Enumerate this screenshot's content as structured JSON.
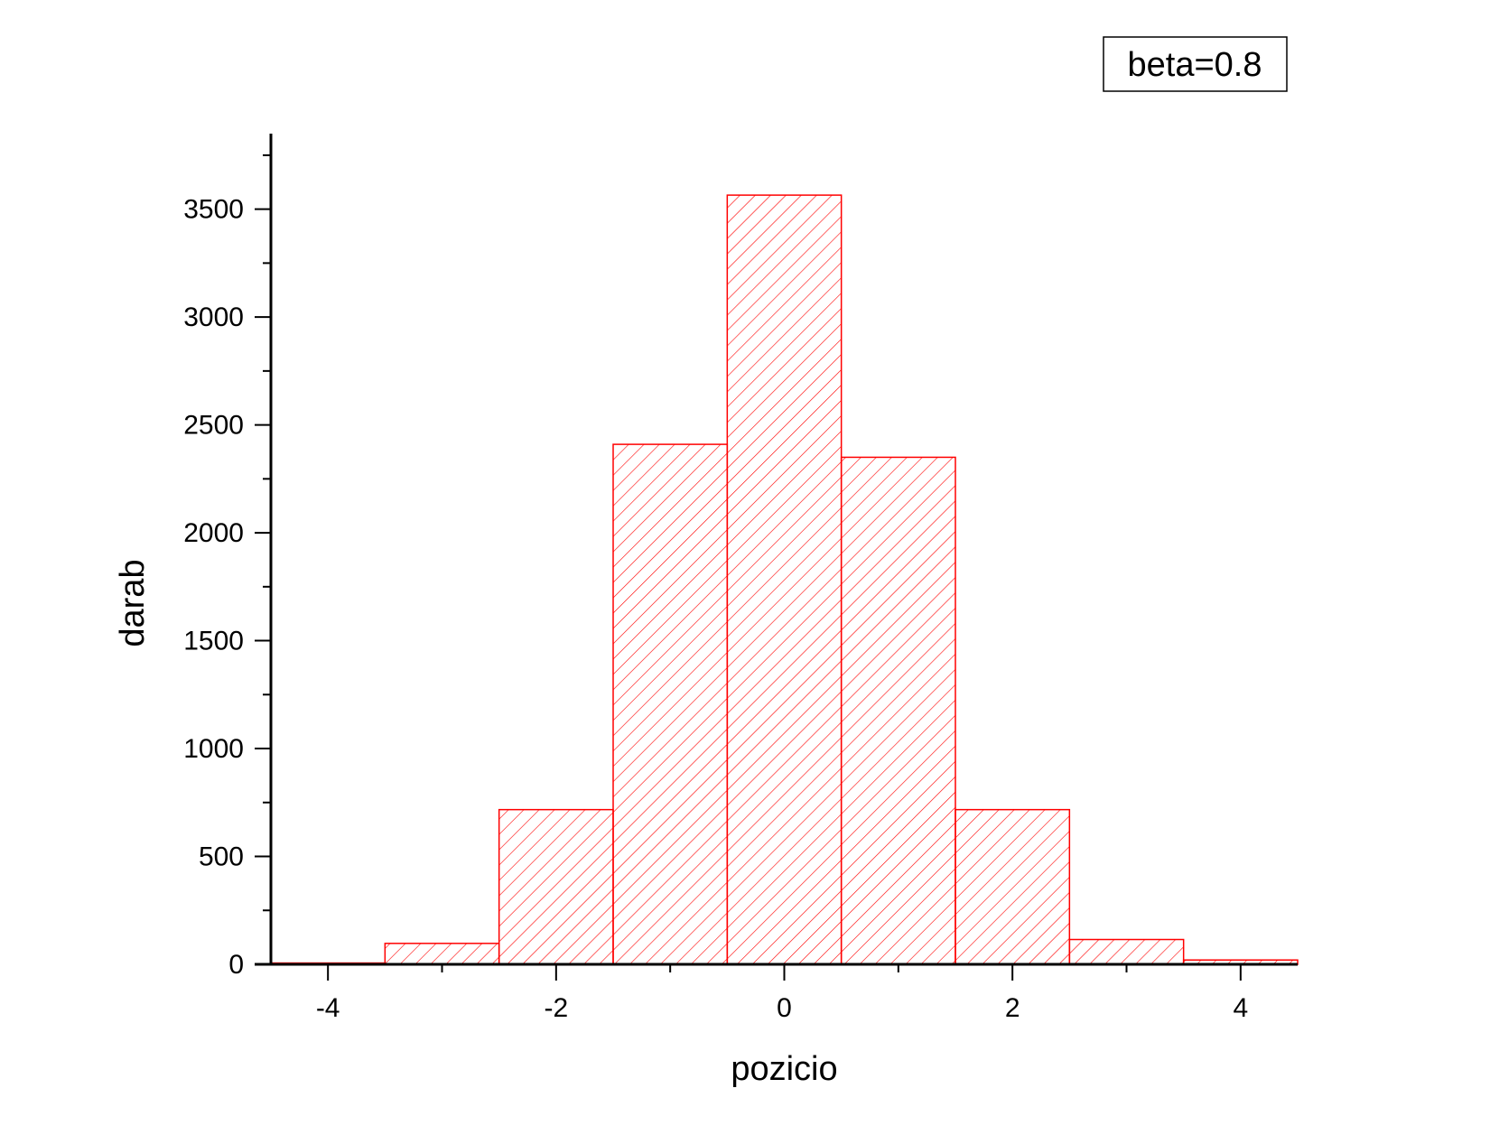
{
  "chart_data": {
    "type": "bar",
    "histogram": true,
    "bins": [
      {
        "x_start": -4.5,
        "x_end": -3.5,
        "value": 6
      },
      {
        "x_start": -3.5,
        "x_end": -2.5,
        "value": 97
      },
      {
        "x_start": -2.5,
        "x_end": -1.5,
        "value": 717
      },
      {
        "x_start": -1.5,
        "x_end": -0.5,
        "value": 2410
      },
      {
        "x_start": -0.5,
        "x_end": 0.5,
        "value": 3565
      },
      {
        "x_start": 0.5,
        "x_end": 1.5,
        "value": 2350
      },
      {
        "x_start": 1.5,
        "x_end": 2.5,
        "value": 717
      },
      {
        "x_start": 2.5,
        "x_end": 3.5,
        "value": 115
      },
      {
        "x_start": 3.5,
        "x_end": 4.5,
        "value": 20
      }
    ],
    "xlabel": "pozicio",
    "ylabel": "darab",
    "xlim": [
      -4.5,
      4.5
    ],
    "ylim": [
      0,
      3850
    ],
    "x_ticks": [
      "-4",
      "-2",
      "0",
      "2",
      "4"
    ],
    "y_ticks": [
      "0",
      "500",
      "1000",
      "1500",
      "2000",
      "2500",
      "3000",
      "3500"
    ],
    "legend": "beta=0.8",
    "legend_position": "top-right",
    "grid": false,
    "bar_color": "#ff0000",
    "bar_fill": "diagonal-hatch"
  }
}
